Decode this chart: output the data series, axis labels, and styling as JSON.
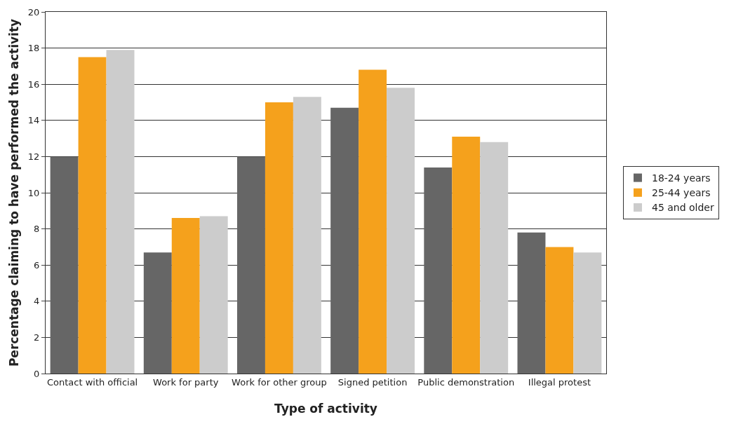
{
  "chart_data": {
    "type": "bar",
    "xlabel": "Type of activity",
    "ylabel": "Percentage claiming to have performed the activity",
    "categories": [
      "Contact with official",
      "Work for party",
      "Work for other group",
      "Signed petition",
      "Public demonstration",
      "Illegal protest"
    ],
    "series": [
      {
        "name": "18-24 years",
        "color": "#666666",
        "values": [
          12.0,
          6.7,
          12.0,
          14.7,
          11.4,
          7.8
        ]
      },
      {
        "name": "25-44 years",
        "color": "#f5a11c",
        "values": [
          17.5,
          8.6,
          15.0,
          16.8,
          13.1,
          7.0
        ]
      },
      {
        "name": "45 and older",
        "color": "#cccccc",
        "values": [
          17.9,
          8.7,
          15.3,
          15.8,
          12.8,
          6.7
        ]
      }
    ],
    "ylim": [
      0,
      20
    ],
    "yticks": [
      0,
      2,
      4,
      6,
      8,
      10,
      12,
      14,
      16,
      18,
      20
    ],
    "grid": "y",
    "legend": "right"
  }
}
